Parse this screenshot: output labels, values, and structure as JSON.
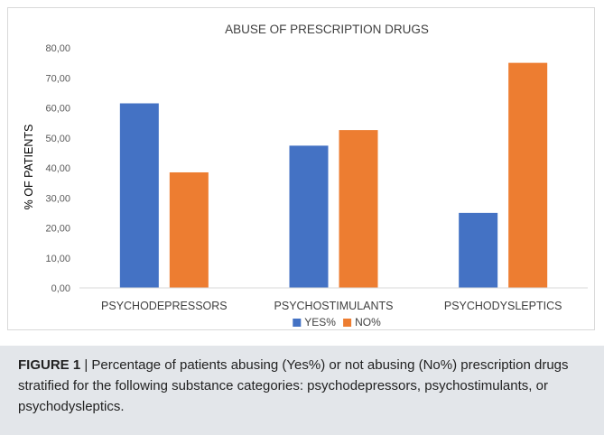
{
  "chart_data": {
    "type": "bar",
    "title": "ABUSE OF PRESCRIPTION DRUGS",
    "xlabel": "",
    "ylabel": "% OF PATIENTS",
    "categories": [
      "PSYCHODEPRESSORS",
      "PSYCHOSTIMULANTS",
      "PSYCHODYSLEPTICS"
    ],
    "series": [
      {
        "name": "YES%",
        "color": "#4472c4",
        "values": [
          61.5,
          47.4,
          25.0
        ]
      },
      {
        "name": "NO%",
        "color": "#ed7d31",
        "values": [
          38.5,
          52.6,
          75.0
        ]
      }
    ],
    "ylim": [
      0,
      80
    ],
    "yticks": [
      "0,00",
      "10,00",
      "20,00",
      "30,00",
      "40,00",
      "50,00",
      "60,00",
      "70,00",
      "80,00"
    ],
    "grid": false,
    "legend": "bottom"
  },
  "caption": {
    "label": "FIGURE 1",
    "separator": " | ",
    "text": "Percentage of patients abusing (Yes%) or not abusing (No%) prescription drugs stratified for the following substance categories: psychodepressors, psychostimulants, or psychodysleptics."
  }
}
